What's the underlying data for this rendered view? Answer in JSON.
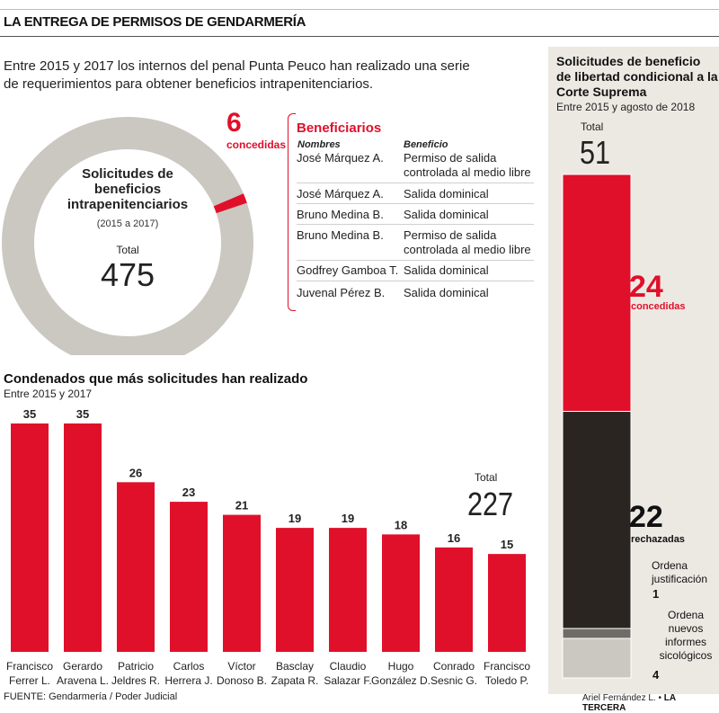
{
  "header": {
    "title": "LA ENTREGA DE PERMISOS DE GENDARMERÍA"
  },
  "intro": {
    "text": "Entre 2015 y 2017 los internos del penal Punta Peuco han realizado una serie de requerimientos para obtener beneficios intrapenitenciarios."
  },
  "donut": {
    "label_line1": "Solicitudes de",
    "label_line2": "beneficios",
    "label_line3": "intrapenitenciarios",
    "period": "(2015 a 2017)",
    "total_label": "Total",
    "total": "475",
    "granted_number": "6",
    "granted_label": "concedidas"
  },
  "beneficiaries": {
    "title": "Beneficiarios",
    "col_names": "Nombres",
    "col_benefit": "Beneficio",
    "rows": [
      {
        "name": "José Márquez A.",
        "benefit": "Permiso de salida controlada al medio libre"
      },
      {
        "name": "José Márquez A.",
        "benefit": "Salida dominical"
      },
      {
        "name": "Bruno Medina B.",
        "benefit": "Salida dominical"
      },
      {
        "name": "Bruno Medina B.",
        "benefit": "Permiso de salida controlada al medio libre"
      },
      {
        "name": "Godfrey Gamboa T.",
        "benefit": "Salida dominical"
      },
      {
        "name": "Juvenal Pérez B.",
        "benefit": "Salida dominical"
      }
    ]
  },
  "bar_section": {
    "title": "Condenados que más solicitudes han realizado",
    "subtitle": "Entre 2015 y 2017",
    "total_label": "Total",
    "total": "227"
  },
  "side": {
    "title": "Solicitudes de beneficio de libertad condicional a la Corte Suprema",
    "subtitle": "Entre 2015 y agosto de 2018",
    "total_label": "Total",
    "total": "51",
    "granted_number": "24",
    "granted_label": "concedidas",
    "rejected_number": "22",
    "rejected_label": "rechazadas",
    "justification_label": "Ordena justificación",
    "justification_number": "1",
    "psych_label": "Ordena nuevos informes sicológicos",
    "psych_number": "4"
  },
  "footer": {
    "source": "FUENTE: Gendarmería / Poder Judicial",
    "credit_author": "Ariel Fernández L. •",
    "credit_outlet": "LA TERCERA"
  },
  "colors": {
    "red": "#e0102a",
    "dark": "#2a2520",
    "grey": "#cbc8c1",
    "mid_grey": "#6f6b66",
    "side_bg": "#ece9e3"
  },
  "chart_data": [
    {
      "type": "pie",
      "title": "Solicitudes de beneficios intrapenitenciarios",
      "subtitle": "(2015 a 2017)",
      "total": 475,
      "slices": [
        {
          "label": "concedidas",
          "value": 6
        },
        {
          "label": "",
          "value": 469
        }
      ]
    },
    {
      "type": "bar",
      "title": "Condenados que más solicitudes han realizado",
      "subtitle": "Entre 2015 y 2017",
      "categories": [
        [
          "Francisco",
          "Ferrer L."
        ],
        [
          "Gerardo",
          "Aravena L."
        ],
        [
          "Patricio",
          "Jeldres R."
        ],
        [
          "Carlos",
          "Herrera J."
        ],
        [
          "Víctor",
          "Donoso B."
        ],
        [
          "Basclay",
          "Zapata R."
        ],
        [
          "Claudio",
          "Salazar F."
        ],
        [
          "Hugo",
          "González D."
        ],
        [
          "Conrado",
          "Sesnic G."
        ],
        [
          "Francisco",
          "Toledo P."
        ]
      ],
      "values": [
        35,
        35,
        26,
        23,
        21,
        19,
        19,
        18,
        16,
        15
      ],
      "ylim": [
        0,
        40
      ],
      "total": 227
    },
    {
      "type": "bar",
      "title": "Solicitudes de beneficio de libertad condicional a la Corte Suprema",
      "subtitle": "Entre 2015 y agosto de 2018",
      "stacked": true,
      "total": 51,
      "segments": [
        {
          "label": "concedidas",
          "value": 24
        },
        {
          "label": "rechazadas",
          "value": 22
        },
        {
          "label": "Ordena justificación",
          "value": 1
        },
        {
          "label": "Ordena nuevos informes sicológicos",
          "value": 4
        }
      ]
    }
  ]
}
